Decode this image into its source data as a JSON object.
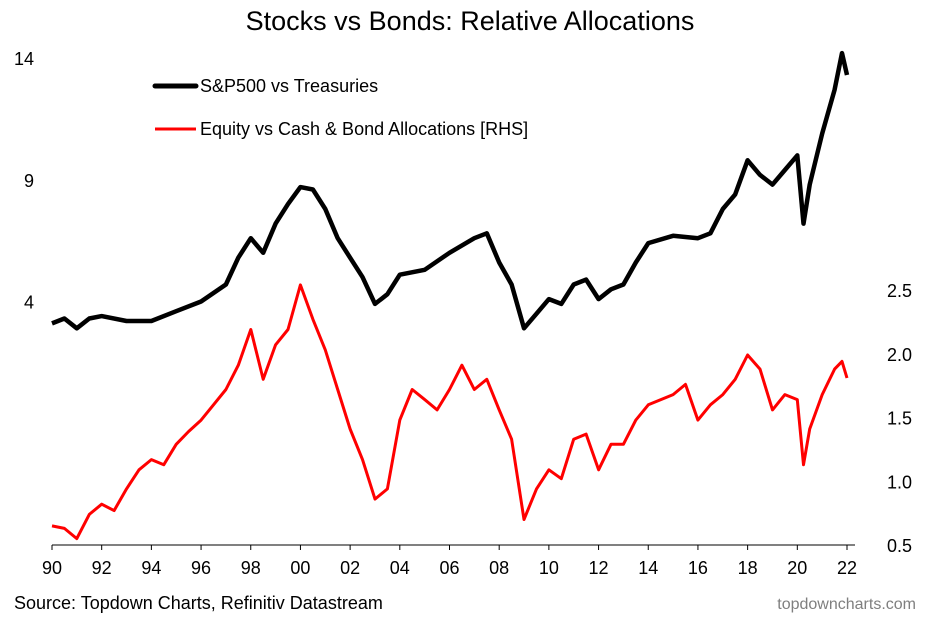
{
  "chart_data": {
    "type": "line",
    "title": "Stocks vs Bonds: Relative Allocations",
    "source": "Source: Topdown Charts, Refinitiv Datastream",
    "watermark": "topdowncharts.com",
    "legend_position": "top-left",
    "grid": false,
    "x_ticks": [
      "90",
      "92",
      "94",
      "96",
      "98",
      "00",
      "02",
      "04",
      "06",
      "08",
      "10",
      "12",
      "14",
      "16",
      "18",
      "20",
      "22"
    ],
    "xlim": [
      1990,
      2022.5
    ],
    "left_axis": {
      "ticks": [
        4,
        9,
        14
      ],
      "ylim": [
        -6,
        14
      ]
    },
    "right_axis": {
      "ticks": [
        0.5,
        1.0,
        1.5,
        2.0,
        2.5
      ],
      "tick_labels": [
        "0.5",
        "1.0",
        "1.5",
        "2.0",
        "2.5"
      ],
      "ylim": [
        0.5,
        4.3
      ]
    },
    "series": [
      {
        "name": "S&P500 vs Treasuries",
        "axis": "left",
        "color": "#000000",
        "x": [
          1990,
          1990.5,
          1991,
          1991.5,
          1992,
          1993,
          1994,
          1995,
          1996,
          1997,
          1997.5,
          1998,
          1998.5,
          1999,
          1999.5,
          2000,
          2000.5,
          2001,
          2001.5,
          2002,
          2002.5,
          2003,
          2003.5,
          2004,
          2005,
          2006,
          2007,
          2007.5,
          2008,
          2008.5,
          2009,
          2009.5,
          2010,
          2010.5,
          2011,
          2011.5,
          2012,
          2012.5,
          2013,
          2013.5,
          2014,
          2015,
          2016,
          2016.5,
          2017,
          2017.5,
          2018,
          2018.5,
          2019,
          2019.5,
          2020,
          2020.25,
          2020.5,
          2021,
          2021.5,
          2021.8,
          2022
        ],
        "y": [
          3.1,
          3.3,
          2.9,
          3.3,
          3.4,
          3.2,
          3.2,
          3.6,
          4.0,
          4.7,
          5.8,
          6.6,
          6.0,
          7.2,
          8.0,
          8.7,
          8.6,
          7.8,
          6.6,
          5.8,
          5.0,
          3.9,
          4.3,
          5.1,
          5.3,
          6.0,
          6.6,
          6.8,
          5.6,
          4.7,
          2.9,
          3.5,
          4.1,
          3.9,
          4.7,
          4.9,
          4.1,
          4.5,
          4.7,
          5.6,
          6.4,
          6.7,
          6.6,
          6.8,
          7.8,
          8.4,
          9.8,
          9.2,
          8.8,
          9.4,
          10.0,
          7.2,
          8.8,
          10.9,
          12.7,
          14.2,
          13.3
        ]
      },
      {
        "name": "Equity vs Cash & Bond Allocations [RHS]",
        "axis": "right",
        "color": "#ff0000",
        "x": [
          1990,
          1990.5,
          1991,
          1991.5,
          1992,
          1992.5,
          1993,
          1993.5,
          1994,
          1994.5,
          1995,
          1995.5,
          1996,
          1996.5,
          1997,
          1997.5,
          1998,
          1998.5,
          1999,
          1999.5,
          2000,
          2000.5,
          2001,
          2001.5,
          2002,
          2002.5,
          2003,
          2003.5,
          2004,
          2004.5,
          2005,
          2005.5,
          2006,
          2006.5,
          2007,
          2007.5,
          2008,
          2008.5,
          2009,
          2009.5,
          2010,
          2010.5,
          2011,
          2011.5,
          2012,
          2012.5,
          2013,
          2013.5,
          2014,
          2015,
          2015.5,
          2016,
          2016.5,
          2017,
          2017.5,
          2018,
          2018.5,
          2019,
          2019.5,
          2020,
          2020.25,
          2020.5,
          2021,
          2021.5,
          2021.8,
          2022
        ],
        "y": [
          0.65,
          0.63,
          0.55,
          0.74,
          0.82,
          0.77,
          0.94,
          1.09,
          1.17,
          1.13,
          1.29,
          1.39,
          1.48,
          1.6,
          1.72,
          1.91,
          2.19,
          1.8,
          2.07,
          2.19,
          2.54,
          2.27,
          2.03,
          1.72,
          1.41,
          1.17,
          0.86,
          0.94,
          1.48,
          1.72,
          1.64,
          1.56,
          1.72,
          1.91,
          1.72,
          1.8,
          1.56,
          1.33,
          0.7,
          0.94,
          1.09,
          1.02,
          1.33,
          1.37,
          1.09,
          1.29,
          1.29,
          1.48,
          1.6,
          1.68,
          1.76,
          1.48,
          1.6,
          1.68,
          1.8,
          1.99,
          1.88,
          1.56,
          1.68,
          1.64,
          1.13,
          1.41,
          1.68,
          1.88,
          1.94,
          1.81
        ]
      }
    ]
  }
}
